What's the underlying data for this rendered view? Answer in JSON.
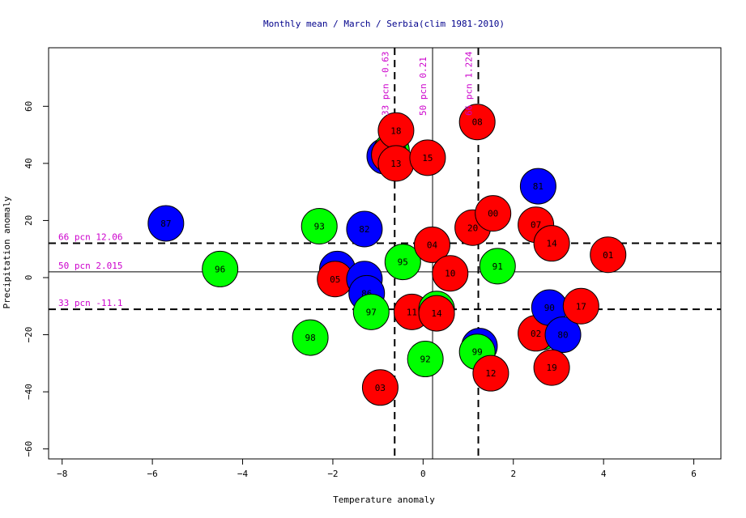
{
  "chart_data": {
    "type": "scatter",
    "title": "Monthly mean / March / Serbia(clim 1981-2010)",
    "xlabel": "Temperature anomaly",
    "ylabel": "Precipitation anomaly",
    "xlim": [
      -8.3,
      6.6
    ],
    "ylim": [
      -63.5,
      80.5
    ],
    "xticks": [
      -8,
      -6,
      -4,
      -2,
      0,
      2,
      4,
      6
    ],
    "yticks": [
      -60,
      -40,
      -20,
      0,
      20,
      40,
      60
    ],
    "vlines": [
      {
        "x": -0.63,
        "label": "33 pcn -0.63",
        "dashed": true
      },
      {
        "x": 0.21,
        "label": "50 pcn 0.21",
        "dashed": false
      },
      {
        "x": 1.224,
        "label": "66 pcn 1.224",
        "dashed": true
      }
    ],
    "hlines": [
      {
        "y": 12.06,
        "label": "66 pcn 12.06",
        "dashed": true
      },
      {
        "y": 2.015,
        "label": "50 pcn 2.015",
        "dashed": false
      },
      {
        "y": -11.1,
        "label": "33 pcn -11.1",
        "dashed": true
      }
    ],
    "colors": {
      "blue": "#0000ff",
      "green": "#00ff00",
      "red": "#ff0000",
      "annotation": "#cc00cc",
      "title": "#00008b"
    },
    "points": [
      {
        "label": "87",
        "x": -5.7,
        "y": 19,
        "color": "blue"
      },
      {
        "label": "96",
        "x": -4.5,
        "y": 3,
        "color": "green"
      },
      {
        "label": "98",
        "x": -2.5,
        "y": -21,
        "color": "green"
      },
      {
        "label": "93",
        "x": -2.3,
        "y": 18,
        "color": "green"
      },
      {
        "label": "84",
        "x": -1.9,
        "y": 3,
        "color": "blue"
      },
      {
        "label": "05",
        "x": -1.95,
        "y": -0.5,
        "color": "red"
      },
      {
        "label": "82",
        "x": -1.3,
        "y": 17,
        "color": "blue"
      },
      {
        "label": "85",
        "x": -1.3,
        "y": -0.5,
        "color": "blue"
      },
      {
        "label": "86",
        "x": -1.25,
        "y": -5.5,
        "color": "blue"
      },
      {
        "label": "97",
        "x": -1.15,
        "y": -12,
        "color": "green"
      },
      {
        "label": "03",
        "x": -0.95,
        "y": -38.5,
        "color": "red"
      },
      {
        "label": "83",
        "x": -0.85,
        "y": 42.5,
        "color": "blue"
      },
      {
        "label": "09",
        "x": -0.7,
        "y": 44.5,
        "color": "green"
      },
      {
        "label": "20",
        "x": -0.75,
        "y": 43,
        "color": "red"
      },
      {
        "label": "18",
        "x": -0.6,
        "y": 51.5,
        "color": "red"
      },
      {
        "label": "13",
        "x": -0.6,
        "y": 40,
        "color": "red"
      },
      {
        "label": "95",
        "x": -0.45,
        "y": 5.5,
        "color": "green"
      },
      {
        "label": "11",
        "x": -0.25,
        "y": -12,
        "color": "red"
      },
      {
        "label": "92",
        "x": 0.05,
        "y": -28.5,
        "color": "green"
      },
      {
        "label": "15",
        "x": 0.1,
        "y": 42,
        "color": "red"
      },
      {
        "label": "04",
        "x": 0.2,
        "y": 11.5,
        "color": "red"
      },
      {
        "label": "89",
        "x": 0.3,
        "y": -11,
        "color": "green"
      },
      {
        "label": "14",
        "x": 0.3,
        "y": -12.5,
        "color": "red"
      },
      {
        "label": "10",
        "x": 0.6,
        "y": 1.5,
        "color": "red"
      },
      {
        "label": "20",
        "x": 1.1,
        "y": 17.5,
        "color": "red"
      },
      {
        "label": "08",
        "x": 1.2,
        "y": 54.5,
        "color": "red"
      },
      {
        "label": "88",
        "x": 1.25,
        "y": -24,
        "color": "blue"
      },
      {
        "label": "99",
        "x": 1.2,
        "y": -26,
        "color": "green"
      },
      {
        "label": "12",
        "x": 1.5,
        "y": -33.5,
        "color": "red"
      },
      {
        "label": "00",
        "x": 1.55,
        "y": 22.5,
        "color": "red"
      },
      {
        "label": "91",
        "x": 1.65,
        "y": 4,
        "color": "green"
      },
      {
        "label": "81",
        "x": 2.55,
        "y": 32,
        "color": "blue"
      },
      {
        "label": "07",
        "x": 2.5,
        "y": 18.5,
        "color": "red"
      },
      {
        "label": "94",
        "x": 2.65,
        "y": -19,
        "color": "green"
      },
      {
        "label": "02",
        "x": 2.5,
        "y": -19.5,
        "color": "red"
      },
      {
        "label": "90",
        "x": 2.8,
        "y": -10.5,
        "color": "blue"
      },
      {
        "label": "80",
        "x": 3.1,
        "y": -20,
        "color": "blue"
      },
      {
        "label": "14",
        "x": 2.85,
        "y": 12,
        "color": "red"
      },
      {
        "label": "19",
        "x": 2.85,
        "y": -31.5,
        "color": "red"
      },
      {
        "label": "17",
        "x": 3.5,
        "y": -10,
        "color": "red"
      },
      {
        "label": "01",
        "x": 4.1,
        "y": 8,
        "color": "red"
      }
    ]
  }
}
